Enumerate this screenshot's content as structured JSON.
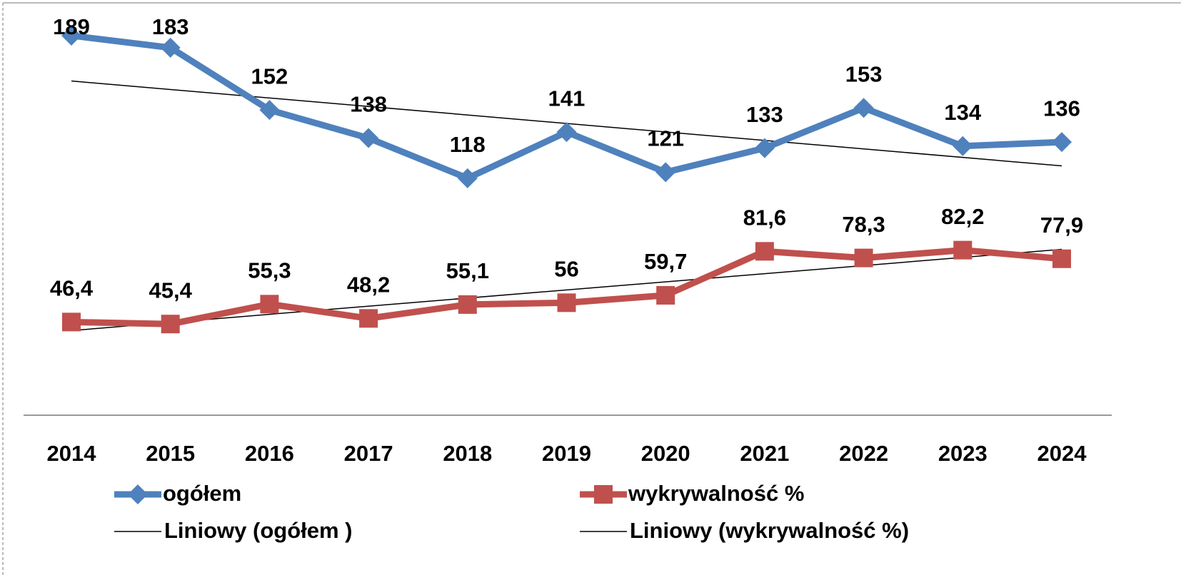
{
  "chart_data": {
    "type": "line",
    "categories": [
      "2014",
      "2015",
      "2016",
      "2017",
      "2018",
      "2019",
      "2020",
      "2021",
      "2022",
      "2023",
      "2024"
    ],
    "ylim": [
      0,
      200
    ],
    "series": [
      {
        "name": "ogółem",
        "color": "#4f81bd",
        "marker": "diamond",
        "values": [
          189,
          183,
          152,
          138,
          118,
          141,
          121,
          133,
          153,
          134,
          136
        ],
        "trendline": "Liniowy (ogółem )"
      },
      {
        "name": "wykrywalność %",
        "color": "#c0504d",
        "marker": "square",
        "values": [
          46.4,
          45.4,
          55.3,
          48.2,
          55.1,
          56,
          59.7,
          81.6,
          78.3,
          82.2,
          77.9
        ],
        "value_labels": [
          "46,4",
          "45,4",
          "55,3",
          "48,2",
          "55,1",
          "56",
          "59,7",
          "81,6",
          "78,3",
          "82,2",
          "77,9"
        ],
        "trendline": "Liniowy (wykrywalność %)"
      }
    ]
  }
}
